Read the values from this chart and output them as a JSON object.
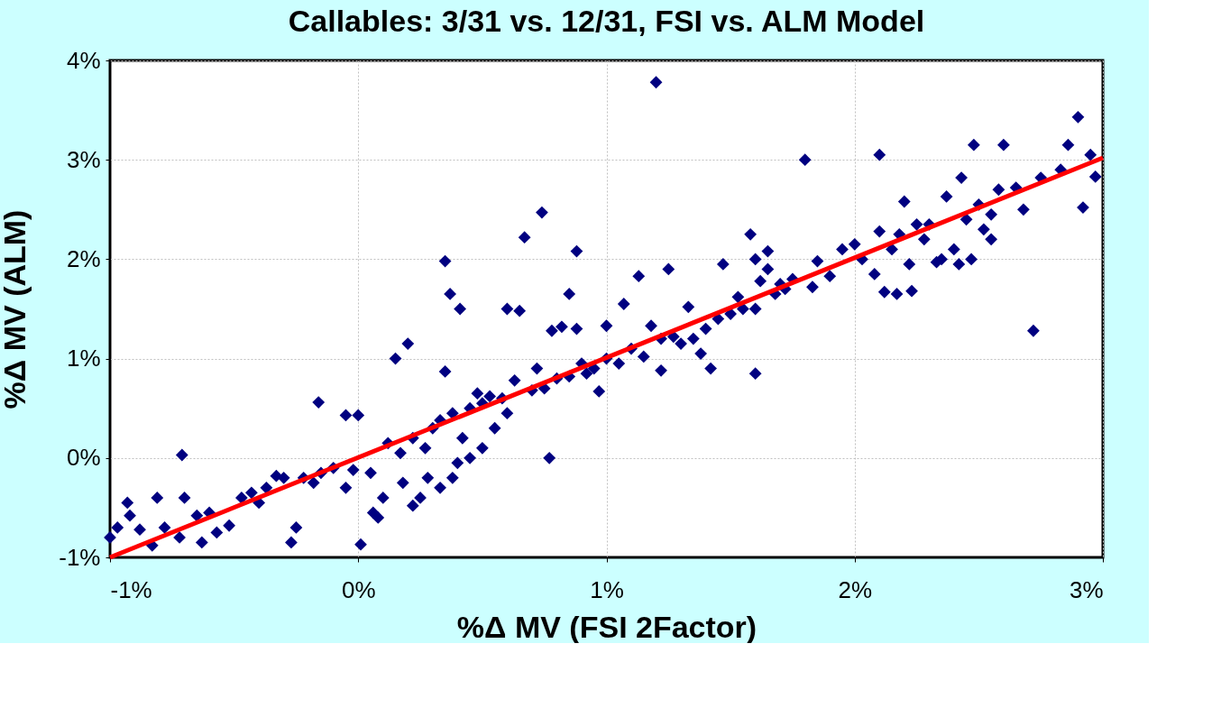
{
  "chart_data": {
    "type": "scatter",
    "title": "Callables: 3/31 vs. 12/31, FSI vs. ALM Model",
    "xlabel": "%Δ MV (FSI 2Factor)",
    "ylabel": "%Δ MV (ALM)",
    "xlim": [
      -1,
      3
    ],
    "ylim": [
      -1,
      4
    ],
    "xticks": [
      {
        "value": -1,
        "label": "-1%"
      },
      {
        "value": 0,
        "label": "0%"
      },
      {
        "value": 1,
        "label": "1%"
      },
      {
        "value": 2,
        "label": "2%"
      },
      {
        "value": 3,
        "label": "3%"
      }
    ],
    "yticks": [
      {
        "value": -1,
        "label": "-1%"
      },
      {
        "value": 0,
        "label": "0%"
      },
      {
        "value": 1,
        "label": "1%"
      },
      {
        "value": 2,
        "label": "2%"
      },
      {
        "value": 3,
        "label": "3%"
      },
      {
        "value": 4,
        "label": "4%"
      }
    ],
    "grid": true,
    "legend": false,
    "marker": "diamond",
    "series": [
      {
        "type": "scatter",
        "color": "#000080",
        "x": [
          -1.0,
          -0.97,
          -0.93,
          -0.92,
          -0.88,
          -0.83,
          -0.81,
          -0.78,
          -0.72,
          -0.71,
          -0.7,
          -0.65,
          -0.63,
          -0.6,
          -0.57,
          -0.52,
          -0.47,
          -0.43,
          -0.4,
          -0.37,
          -0.33,
          -0.3,
          -0.27,
          -0.25,
          -0.22,
          -0.18,
          -0.16,
          -0.15,
          -0.1,
          -0.05,
          -0.05,
          0.0,
          -0.02,
          0.01,
          0.05,
          0.06,
          0.08,
          0.1,
          0.12,
          0.15,
          0.17,
          0.2,
          0.18,
          0.22,
          0.22,
          0.25,
          0.27,
          0.28,
          0.3,
          0.33,
          0.33,
          0.35,
          0.35,
          0.37,
          0.38,
          0.38,
          0.4,
          0.41,
          0.42,
          0.45,
          0.45,
          0.48,
          0.5,
          0.5,
          0.53,
          0.55,
          0.58,
          0.6,
          0.6,
          0.63,
          0.65,
          0.67,
          0.7,
          0.72,
          0.74,
          0.75,
          0.77,
          0.78,
          0.8,
          0.82,
          0.85,
          0.85,
          0.88,
          0.88,
          0.9,
          0.92,
          0.95,
          0.97,
          1.0,
          1.0,
          1.05,
          1.07,
          1.1,
          1.15,
          1.13,
          1.18,
          1.2,
          1.22,
          1.22,
          1.25,
          1.27,
          1.3,
          1.33,
          1.35,
          1.38,
          1.4,
          1.42,
          1.45,
          1.47,
          1.5,
          1.53,
          1.55,
          1.6,
          1.6,
          1.58,
          1.6,
          1.62,
          1.65,
          1.65,
          1.68,
          1.7,
          1.72,
          1.75,
          1.8,
          1.83,
          1.85,
          1.9,
          1.95,
          2.0,
          2.03,
          2.08,
          2.1,
          2.1,
          2.12,
          2.15,
          2.17,
          2.18,
          2.2,
          2.22,
          2.23,
          2.25,
          2.28,
          2.3,
          2.33,
          2.35,
          2.37,
          2.4,
          2.42,
          2.43,
          2.45,
          2.47,
          2.48,
          2.5,
          2.52,
          2.55,
          2.55,
          2.58,
          2.6,
          2.65,
          2.68,
          2.72,
          2.75,
          2.83,
          2.86,
          2.9,
          2.92,
          2.95,
          2.97
        ],
        "values": [
          -0.8,
          -0.7,
          -0.45,
          -0.58,
          -0.72,
          -0.88,
          -0.4,
          -0.7,
          -0.8,
          0.03,
          -0.4,
          -0.58,
          -0.85,
          -0.55,
          -0.75,
          -0.68,
          -0.4,
          -0.35,
          -0.45,
          -0.3,
          -0.18,
          -0.2,
          -0.85,
          -0.7,
          -0.2,
          -0.25,
          0.56,
          -0.15,
          -0.1,
          -0.3,
          0.43,
          0.43,
          -0.12,
          -0.87,
          -0.15,
          -0.55,
          -0.6,
          -0.4,
          0.15,
          1.0,
          0.05,
          1.15,
          -0.25,
          -0.48,
          0.2,
          -0.4,
          0.1,
          -0.2,
          0.3,
          0.38,
          -0.3,
          0.87,
          1.98,
          1.65,
          0.45,
          -0.2,
          -0.05,
          1.5,
          0.2,
          0.5,
          0.0,
          0.65,
          0.55,
          0.1,
          0.62,
          0.3,
          0.6,
          1.5,
          0.45,
          0.78,
          1.48,
          2.22,
          0.68,
          0.9,
          2.47,
          0.7,
          0.0,
          1.28,
          0.8,
          1.32,
          0.82,
          1.65,
          1.3,
          2.08,
          0.95,
          0.85,
          0.9,
          0.67,
          1.33,
          1.0,
          0.95,
          1.55,
          1.1,
          1.02,
          1.83,
          1.33,
          3.78,
          1.2,
          0.88,
          1.9,
          1.22,
          1.15,
          1.52,
          1.2,
          1.05,
          1.3,
          0.9,
          1.4,
          1.95,
          1.45,
          1.62,
          1.5,
          0.85,
          1.5,
          2.25,
          2.0,
          1.78,
          1.9,
          2.08,
          1.65,
          1.75,
          1.7,
          1.8,
          3.0,
          1.72,
          1.98,
          1.83,
          2.1,
          2.15,
          2.0,
          1.85,
          2.28,
          3.05,
          1.67,
          2.1,
          1.65,
          2.25,
          2.58,
          1.95,
          1.68,
          2.35,
          2.2,
          2.35,
          1.97,
          2.0,
          2.63,
          2.1,
          1.95,
          2.82,
          2.4,
          2.0,
          3.15,
          2.55,
          2.3,
          2.2,
          2.45,
          2.7,
          3.15,
          2.72,
          2.5,
          1.28,
          2.82,
          2.9,
          3.15,
          3.43,
          2.52,
          3.05,
          2.83
        ]
      },
      {
        "type": "line",
        "color": "#ff0000",
        "marker": "none",
        "x": [
          -1,
          3
        ],
        "values": [
          -1,
          3.02
        ]
      }
    ]
  }
}
